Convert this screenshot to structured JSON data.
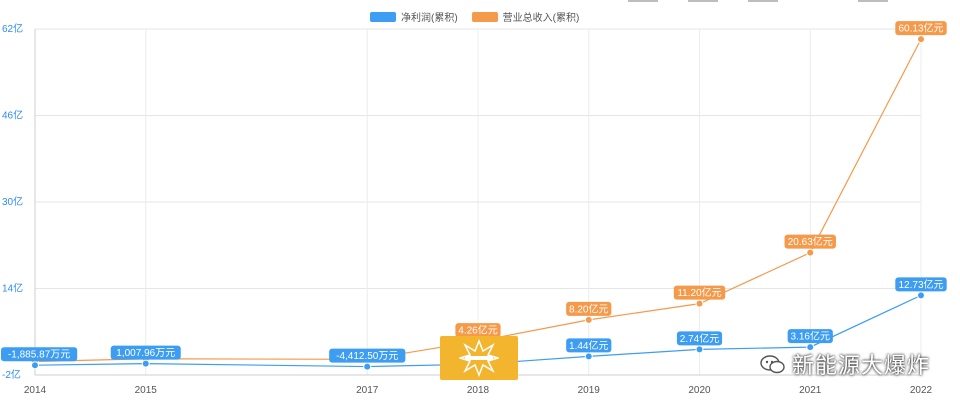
{
  "chart_data": {
    "type": "line",
    "title": "",
    "xlabel": "",
    "ylabel": "",
    "x": [
      "2014",
      "2015",
      "2017",
      "2018",
      "2019",
      "2020",
      "2021",
      "2022"
    ],
    "x_positions_years": [
      2014,
      2015,
      2017,
      2018,
      2019,
      2020,
      2021,
      2022
    ],
    "ylim": [
      -2,
      62
    ],
    "y_ticks": [
      -2,
      14,
      30,
      46,
      62
    ],
    "y_tick_labels": [
      "-2亿",
      "14亿",
      "30亿",
      "46亿",
      "62亿"
    ],
    "grid": true,
    "legend_position": "top-center",
    "series": [
      {
        "name": "净利润(累积)",
        "color": "#3d9df2",
        "values": [
          -0.189,
          0.101,
          -0.441,
          0.0,
          1.44,
          2.74,
          3.16,
          12.73
        ],
        "labels": [
          "-1,885.87万元",
          "1,007.96万元",
          "-4,412.50万元",
          "",
          "1.44亿元",
          "2.74亿元",
          "3.16亿元",
          "12.73亿元"
        ]
      },
      {
        "name": "营业总收入(累积)",
        "color": "#f5994a",
        "values": [
          0.5,
          1.0,
          0.9,
          4.26,
          8.2,
          11.2,
          20.63,
          60.13
        ],
        "labels": [
          "",
          "",
          "",
          "4.26亿元",
          "8.20亿元",
          "11.20亿元",
          "20.63亿元",
          "60.13亿元"
        ]
      }
    ]
  },
  "watermark_text": "新能源大爆炸"
}
